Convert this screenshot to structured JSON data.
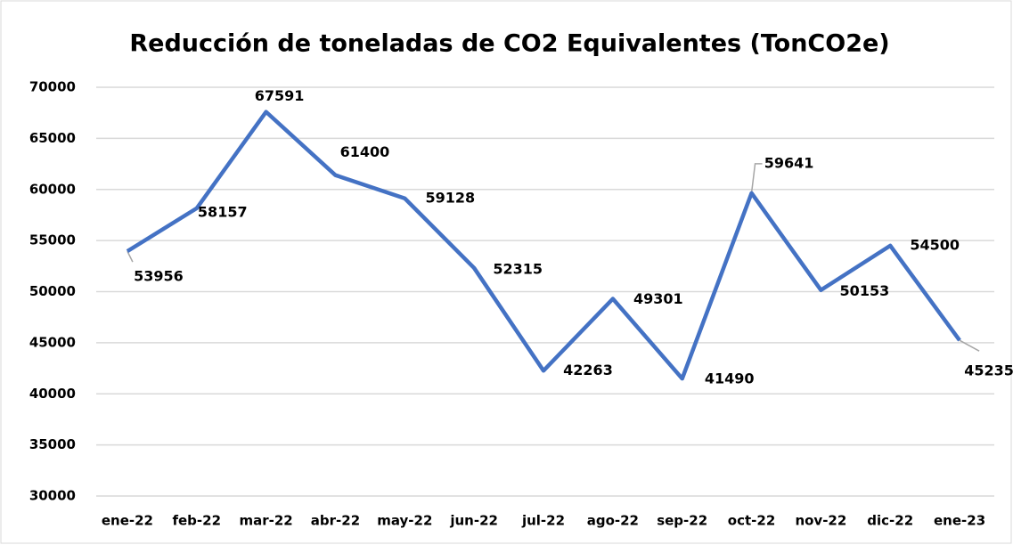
{
  "chart_data": {
    "type": "line",
    "title": "Reducción de toneladas de CO2 Equivalentes (TonCO2e)",
    "categories": [
      "ene-22",
      "feb-22",
      "mar-22",
      "abr-22",
      "may-22",
      "jun-22",
      "jul-22",
      "ago-22",
      "sep-22",
      "oct-22",
      "nov-22",
      "dic-22",
      "ene-23"
    ],
    "series": [
      {
        "name": "TonCO2e",
        "color": "#4472c4",
        "values": [
          53956,
          58157,
          67591,
          61400,
          59128,
          52315,
          42263,
          49301,
          41490,
          59641,
          50153,
          54500,
          45235
        ]
      }
    ],
    "ylim": [
      30000,
      70000
    ],
    "yticks": [
      30000,
      35000,
      40000,
      45000,
      50000,
      55000,
      60000,
      65000,
      70000
    ],
    "grid": true
  }
}
